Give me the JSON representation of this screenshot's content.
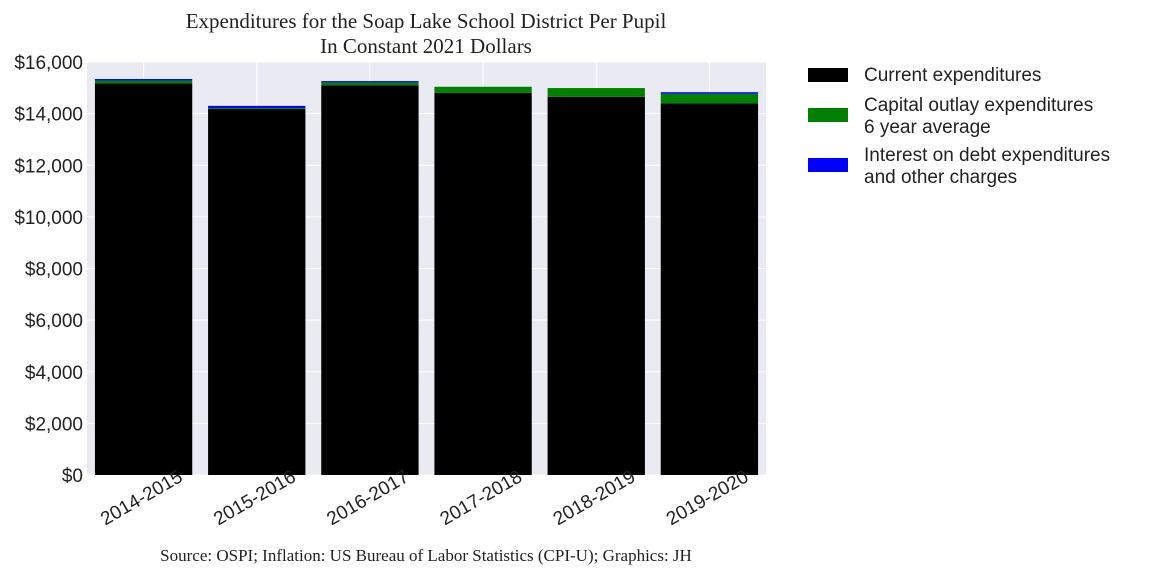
{
  "chart_data": {
    "type": "bar",
    "stacked": true,
    "title": [
      "Expenditures for the Soap Lake School District Per Pupil",
      "In Constant 2021 Dollars"
    ],
    "source": "Source: OSPI; Inflation: US Bureau of Labor Statistics (CPI-U); Graphics: JH",
    "categories": [
      "2014-2015",
      "2015-2016",
      "2016-2017",
      "2017-2018",
      "2018-2019",
      "2019-2020"
    ],
    "series": [
      {
        "name": "Current expenditures",
        "color": "#000000",
        "values": [
          15170,
          14180,
          15100,
          14800,
          14650,
          14400
        ]
      },
      {
        "name": "Capital outlay expenditures\n6 year average",
        "color": "#008000",
        "values": [
          110,
          40,
          110,
          240,
          340,
          370
        ]
      },
      {
        "name": "Interest on debt expenditures\nand other charges",
        "color": "#0000ff",
        "values": [
          60,
          80,
          50,
          0,
          0,
          60
        ]
      }
    ],
    "ylim": [
      0,
      16000
    ],
    "yticks": [
      0,
      2000,
      4000,
      6000,
      8000,
      10000,
      12000,
      14000,
      16000
    ],
    "ytick_labels": [
      "$0",
      "$2,000",
      "$4,000",
      "$6,000",
      "$8,000",
      "$10,000",
      "$12,000",
      "$14,000",
      "$16,000"
    ],
    "xlabel": "",
    "ylabel": "",
    "grid": true,
    "legend_position": "right"
  }
}
